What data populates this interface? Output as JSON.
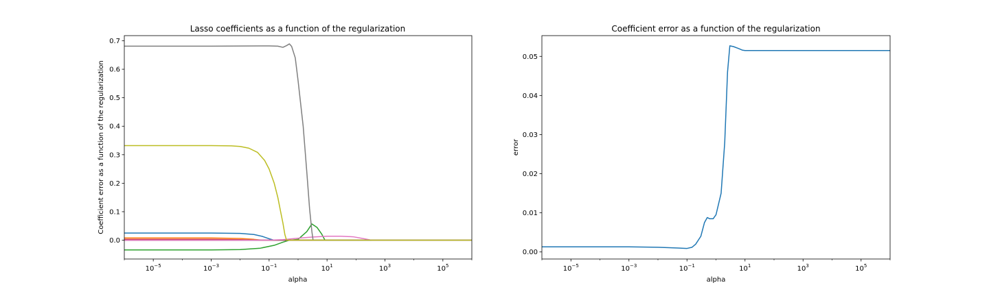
{
  "chart_data": [
    {
      "type": "line",
      "title": "Lasso coefficients as a function of the regularization",
      "xlabel": "alpha",
      "ylabel": "Coefficient error as a function of the regularization",
      "xscale": "log",
      "xlim": [
        1e-06,
        1000000.0
      ],
      "ylim": [
        -0.066,
        0.718
      ],
      "xticks": [
        {
          "value": 1e-05,
          "base": "10",
          "exp": "−5"
        },
        {
          "value": 0.001,
          "base": "10",
          "exp": "−3"
        },
        {
          "value": 0.1,
          "base": "10",
          "exp": "−1"
        },
        {
          "value": 10,
          "base": "10",
          "exp": "1"
        },
        {
          "value": 1000,
          "base": "10",
          "exp": "3"
        },
        {
          "value": 100000,
          "base": "10",
          "exp": "5"
        }
      ],
      "yticks": [
        {
          "value": 0.0,
          "label": "0.0"
        },
        {
          "value": 0.1,
          "label": "0.1"
        },
        {
          "value": 0.2,
          "label": "0.2"
        },
        {
          "value": 0.3,
          "label": "0.3"
        },
        {
          "value": 0.4,
          "label": "0.4"
        },
        {
          "value": 0.5,
          "label": "0.5"
        },
        {
          "value": 0.6,
          "label": "0.6"
        },
        {
          "value": 0.7,
          "label": "0.7"
        }
      ],
      "grid": false,
      "legend": "none",
      "series": [
        {
          "color": "#1f77b4",
          "points": [
            [
              1e-06,
              0.025
            ],
            [
              0.001,
              0.025
            ],
            [
              0.01,
              0.024
            ],
            [
              0.03,
              0.02
            ],
            [
              0.06,
              0.013
            ],
            [
              0.1,
              0.005
            ],
            [
              0.15,
              0.0
            ],
            [
              1000000,
              0.0
            ]
          ]
        },
        {
          "color": "#ff7f0e",
          "points": [
            [
              1e-06,
              0.008
            ],
            [
              0.001,
              0.008
            ],
            [
              0.01,
              0.006
            ],
            [
              0.03,
              0.003
            ],
            [
              0.06,
              0.0
            ],
            [
              1000000,
              0.0
            ]
          ]
        },
        {
          "color": "#2ca02c",
          "points": [
            [
              1e-06,
              -0.034
            ],
            [
              0.001,
              -0.034
            ],
            [
              0.01,
              -0.033
            ],
            [
              0.05,
              -0.028
            ],
            [
              0.15,
              -0.018
            ],
            [
              0.3,
              -0.007
            ],
            [
              0.5,
              0.0
            ],
            [
              1.0,
              0.003
            ],
            [
              2.0,
              0.03
            ],
            [
              3.0,
              0.057
            ],
            [
              4.5,
              0.045
            ],
            [
              6.5,
              0.022
            ],
            [
              8.5,
              0.0
            ],
            [
              1000000,
              0.0
            ]
          ]
        },
        {
          "color": "#d62728",
          "points": [
            [
              1e-06,
              0.003
            ],
            [
              0.001,
              0.003
            ],
            [
              0.01,
              0.002
            ],
            [
              0.05,
              0.0
            ],
            [
              1000000,
              0.0
            ]
          ]
        },
        {
          "color": "#9467bd",
          "points": [
            [
              1e-06,
              0.0
            ],
            [
              1000000,
              0.0
            ]
          ]
        },
        {
          "color": "#8c564b",
          "points": [
            [
              1e-06,
              0.0
            ],
            [
              1000000,
              0.0
            ]
          ]
        },
        {
          "color": "#e377c2",
          "points": [
            [
              1e-06,
              0.0
            ],
            [
              0.1,
              0.0
            ],
            [
              0.3,
              0.002
            ],
            [
              1.0,
              0.007
            ],
            [
              3.0,
              0.011
            ],
            [
              10,
              0.014
            ],
            [
              30,
              0.014
            ],
            [
              80,
              0.012
            ],
            [
              150,
              0.007
            ],
            [
              250,
              0.003
            ],
            [
              350,
              0.0
            ],
            [
              1000000,
              0.0
            ]
          ]
        },
        {
          "color": "#7f7f7f",
          "points": [
            [
              1e-06,
              0.681
            ],
            [
              0.001,
              0.681
            ],
            [
              0.1,
              0.682
            ],
            [
              0.2,
              0.681
            ],
            [
              0.3,
              0.677
            ],
            [
              0.4,
              0.683
            ],
            [
              0.5,
              0.689
            ],
            [
              0.6,
              0.68
            ],
            [
              0.8,
              0.64
            ],
            [
              1.0,
              0.56
            ],
            [
              1.5,
              0.4
            ],
            [
              2.0,
              0.24
            ],
            [
              2.5,
              0.11
            ],
            [
              3.0,
              0.03
            ],
            [
              3.3,
              0.0
            ],
            [
              1000000,
              0.0
            ]
          ]
        },
        {
          "color": "#bcbd22",
          "points": [
            [
              1e-06,
              0.332
            ],
            [
              0.001,
              0.332
            ],
            [
              0.005,
              0.331
            ],
            [
              0.01,
              0.329
            ],
            [
              0.02,
              0.323
            ],
            [
              0.04,
              0.308
            ],
            [
              0.07,
              0.28
            ],
            [
              0.1,
              0.25
            ],
            [
              0.15,
              0.2
            ],
            [
              0.2,
              0.15
            ],
            [
              0.25,
              0.1
            ],
            [
              0.3,
              0.06
            ],
            [
              0.35,
              0.02
            ],
            [
              0.4,
              0.0
            ],
            [
              1000000,
              0.0
            ]
          ]
        }
      ]
    },
    {
      "type": "line",
      "title": "Coefficient error as a function of the regularization",
      "xlabel": "alpha",
      "ylabel": "error",
      "xscale": "log",
      "xlim": [
        1e-06,
        1000000.0
      ],
      "ylim": [
        -0.0018,
        0.0553
      ],
      "xticks": [
        {
          "value": 1e-05,
          "base": "10",
          "exp": "−5"
        },
        {
          "value": 0.001,
          "base": "10",
          "exp": "−3"
        },
        {
          "value": 0.1,
          "base": "10",
          "exp": "−1"
        },
        {
          "value": 10,
          "base": "10",
          "exp": "1"
        },
        {
          "value": 1000,
          "base": "10",
          "exp": "3"
        },
        {
          "value": 100000,
          "base": "10",
          "exp": "5"
        }
      ],
      "yticks": [
        {
          "value": 0.0,
          "label": "0.00"
        },
        {
          "value": 0.01,
          "label": "0.01"
        },
        {
          "value": 0.02,
          "label": "0.02"
        },
        {
          "value": 0.03,
          "label": "0.03"
        },
        {
          "value": 0.04,
          "label": "0.04"
        },
        {
          "value": 0.05,
          "label": "0.05"
        }
      ],
      "grid": false,
      "legend": "none",
      "series": [
        {
          "color": "#1f77b4",
          "points": [
            [
              1e-06,
              0.0013
            ],
            [
              0.001,
              0.0013
            ],
            [
              0.01,
              0.0012
            ],
            [
              0.05,
              0.001
            ],
            [
              0.1,
              0.0009
            ],
            [
              0.15,
              0.0012
            ],
            [
              0.2,
              0.002
            ],
            [
              0.3,
              0.004
            ],
            [
              0.4,
              0.0075
            ],
            [
              0.5,
              0.0088
            ],
            [
              0.6,
              0.0085
            ],
            [
              0.8,
              0.0085
            ],
            [
              1.0,
              0.0095
            ],
            [
              1.5,
              0.015
            ],
            [
              2.0,
              0.028
            ],
            [
              2.5,
              0.046
            ],
            [
              3.0,
              0.0527
            ],
            [
              4.0,
              0.0525
            ],
            [
              6.0,
              0.052
            ],
            [
              8.0,
              0.0516
            ],
            [
              10,
              0.0515
            ],
            [
              1000000,
              0.0515
            ]
          ]
        }
      ]
    }
  ]
}
